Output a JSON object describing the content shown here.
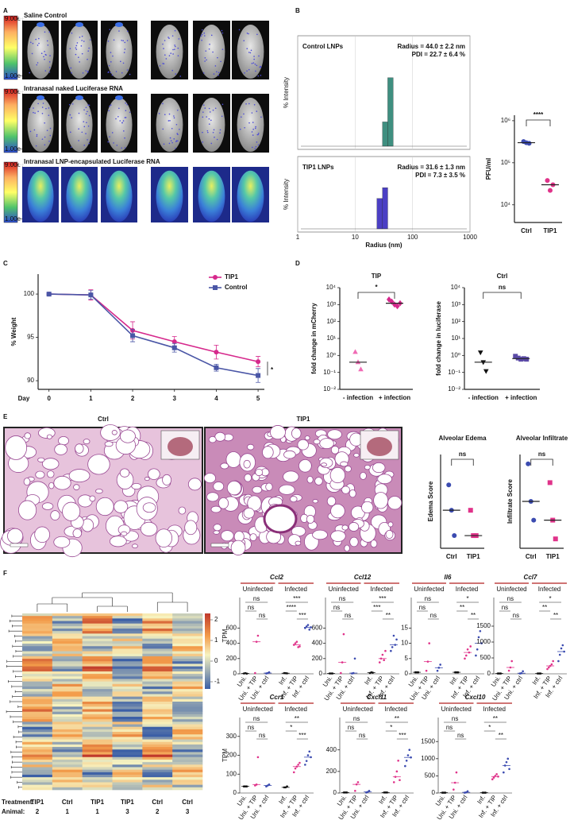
{
  "panel_letters": [
    "A",
    "B",
    "C",
    "D",
    "E",
    "F"
  ],
  "panel_a": {
    "rows": [
      "Saline Control",
      "Intranasal naked Luciferase RNA",
      "Intranasal LNP-encapsulated Luciferase RNA"
    ],
    "colorbar_labels": [
      "9.00e+",
      "1.00e+"
    ]
  },
  "panel_e": {
    "images": [
      "Ctrl",
      "TIP1"
    ]
  },
  "heatmap": {
    "colorbar_ticks": [
      2,
      1,
      0,
      -1
    ],
    "row_titles": [
      "Treatment:",
      "Animal:"
    ],
    "treatment": [
      "TIP1",
      "Ctrl",
      "TIP1",
      "TIP1",
      "Ctrl",
      "Ctrl"
    ],
    "animal": [
      "2",
      "1",
      "1",
      "3",
      "2",
      "3"
    ]
  },
  "panel_f": {
    "group_headers": [
      "Uninfected",
      "Infected"
    ],
    "x_labels": [
      "Uni.",
      "Uni. + TIP",
      "Uni. + ctrl",
      "Inf.",
      "Inf. + TIP",
      "Inf. + ctrl"
    ],
    "colors": [
      "#111111",
      "#e0338a",
      "#3b4bb0",
      "#111111",
      "#e0338a",
      "#3b4bb0"
    ],
    "ylabel": "TPM"
  },
  "chart_data": [
    {
      "type": "histogram",
      "title": "Control LNPs",
      "annotations": [
        "Radius = 44.0 ± 2.2 nm",
        "PDI = 22.7 ± 6.4 %"
      ],
      "ylabel": "% Intensity",
      "bins": [
        30,
        37,
        46
      ],
      "values": [
        22,
        62
      ],
      "color": "#3f8f80",
      "xlim": [
        1,
        1000
      ],
      "xticks": [
        1,
        10,
        100,
        1000
      ],
      "log_x": true,
      "ylim": [
        0,
        100
      ],
      "grid": true
    },
    {
      "type": "histogram",
      "title": "TIP1 LNPs",
      "annotations": [
        "Radius = 31.6 ± 1.3 nm",
        "PDI = 7.3 ± 3.5 %"
      ],
      "ylabel": "% Intensity",
      "xlabel": "Radius (nm)",
      "bins": [
        24,
        30,
        37
      ],
      "values": [
        42,
        57
      ],
      "color": "#4b3fc4",
      "xlim": [
        1,
        1000
      ],
      "xticks": [
        1,
        10,
        100,
        1000
      ],
      "log_x": true,
      "ylim": [
        0,
        100
      ],
      "grid": true
    },
    {
      "type": "scatter",
      "categories": [
        "Ctrl",
        "TIP1"
      ],
      "groups": [
        [
          320000,
          300000,
          290000
        ],
        [
          38000,
          22000,
          30000
        ]
      ],
      "medians": [
        300000,
        30000
      ],
      "colors": [
        "#3b4bb0",
        "#e0338a"
      ],
      "markers": [
        "circle",
        "circle"
      ],
      "ylabel": "PFU/ml",
      "ylim": [
        3800,
        1350000
      ],
      "log_y": true,
      "yticks": [
        {
          "value": 10000,
          "label": "10⁴"
        },
        {
          "value": 100000,
          "label": "10⁵"
        },
        {
          "value": 1000000,
          "label": "10⁶"
        }
      ],
      "significance": "****"
    },
    {
      "type": "line",
      "ylabel": "% Weight",
      "xlabel": "Day",
      "x": [
        0,
        1,
        2,
        3,
        4,
        5
      ],
      "xlim": [
        -0.26,
        5.15
      ],
      "ylim": [
        89,
        102.3
      ],
      "xticks": [
        0,
        1,
        2,
        3,
        4,
        5
      ],
      "yticks": [
        90,
        95,
        100
      ],
      "legend": "top-right",
      "annotation": "*",
      "series": [
        {
          "name": "TIP1",
          "color": "#d6288c",
          "marker": "circle",
          "values": [
            100,
            99.9,
            95.8,
            94.5,
            93.3,
            92.2
          ],
          "errors": [
            0.1,
            0.6,
            1.0,
            0.6,
            0.8,
            0.6
          ]
        },
        {
          "name": "Control",
          "color": "#4a56a6",
          "marker": "square",
          "values": [
            100,
            99.9,
            95.2,
            93.8,
            91.5,
            90.6
          ],
          "errors": [
            0.1,
            0.5,
            0.7,
            0.5,
            0.4,
            0.8
          ]
        }
      ]
    },
    {
      "type": "scatter",
      "title": "TIP",
      "ylabel": "fold change in mCherry",
      "categories": [
        "- infection",
        "+ infection"
      ],
      "groups": [
        [
          1.6,
          0.4,
          0.15
        ],
        [
          2000,
          1500,
          1000,
          800,
          1200
        ]
      ],
      "medians": [
        0.4,
        1200
      ],
      "colors": [
        "#f06bb5",
        "#d6288c"
      ],
      "markers": [
        "triangle",
        "diamond"
      ],
      "ylim": [
        0.01,
        10000
      ],
      "log_y": true,
      "yticks": [
        {
          "value": 0.01,
          "label": "10⁻²"
        },
        {
          "value": 0.1,
          "label": "10⁻¹"
        },
        {
          "value": 1,
          "label": "10⁰"
        },
        {
          "value": 10,
          "label": "10¹"
        },
        {
          "value": 100,
          "label": "10²"
        },
        {
          "value": 1000,
          "label": "10³"
        },
        {
          "value": 10000,
          "label": "10⁴"
        }
      ],
      "significance": "*"
    },
    {
      "type": "scatter",
      "title": "Ctrl",
      "ylabel": "fold change in luciferase",
      "categories": [
        "- infection",
        "+ infection"
      ],
      "groups": [
        [
          1.5,
          0.4,
          0.12
        ],
        [
          0.9,
          0.7,
          0.6,
          0.65,
          0.6
        ]
      ],
      "medians": [
        0.4,
        0.65
      ],
      "colors": [
        "#111111",
        "#5b4aa6"
      ],
      "markers": [
        "triangle-down",
        "square"
      ],
      "ylim": [
        0.01,
        10000
      ],
      "log_y": true,
      "yticks": [
        {
          "value": 0.01,
          "label": "10⁻²"
        },
        {
          "value": 0.1,
          "label": "10⁻¹"
        },
        {
          "value": 1,
          "label": "10⁰"
        },
        {
          "value": 10,
          "label": "10¹"
        },
        {
          "value": 100,
          "label": "10²"
        },
        {
          "value": 1000,
          "label": "10³"
        },
        {
          "value": 10000,
          "label": "10⁴"
        }
      ],
      "significance": "ns"
    },
    {
      "type": "scatter",
      "title": "Alveolar Edema",
      "ylabel": "Edema Score",
      "categories": [
        "Ctrl",
        "TIP1"
      ],
      "groups": [
        [
          2,
          1,
          0
        ],
        [
          1,
          0,
          0
        ]
      ],
      "medians": [
        1,
        0
      ],
      "colors": [
        "#3b4bb0",
        "#e0338a"
      ],
      "markers": [
        "circle",
        "square"
      ],
      "ylim": [
        -0.5,
        3.2
      ],
      "significance": "ns"
    },
    {
      "type": "scatter",
      "title": "Alveolar Infiltrate",
      "ylabel": "Infiltrate Score",
      "categories": [
        "Ctrl",
        "TIP1"
      ],
      "groups": [
        [
          4,
          2,
          1
        ],
        [
          3,
          1,
          0
        ]
      ],
      "medians": [
        2,
        1
      ],
      "colors": [
        "#3b4bb0",
        "#e0338a"
      ],
      "markers": [
        "circle",
        "square"
      ],
      "ylim": [
        -0.5,
        4.5
      ],
      "significance": "ns"
    },
    {
      "type": "strip",
      "title": "Ccl2",
      "ylim": [
        0,
        1000
      ],
      "yticks": [
        0,
        200,
        400,
        600
      ],
      "groups": [
        [
          5,
          8,
          3
        ],
        [
          10,
          420,
          500
        ],
        [
          5,
          10,
          20
        ],
        [
          10,
          8,
          6
        ],
        [
          380,
          400,
          420,
          350,
          360
        ],
        [
          600,
          620,
          640,
          580,
          610
        ]
      ],
      "medians": [
        5,
        420,
        10,
        8,
        380,
        610
      ],
      "significance": [
        [
          "ns",
          "ns",
          "ns"
        ],
        [
          "***",
          "****",
          "***"
        ]
      ]
    },
    {
      "type": "strip",
      "title": "Ccl12",
      "ylim": [
        0,
        1000
      ],
      "yticks": [
        0,
        200,
        400,
        600
      ],
      "groups": [
        [
          5,
          5,
          5
        ],
        [
          10,
          150,
          520
        ],
        [
          5,
          10,
          200
        ],
        [
          10,
          20,
          15
        ],
        [
          150,
          200,
          250,
          180,
          300
        ],
        [
          300,
          350,
          500,
          380,
          450
        ]
      ],
      "medians": [
        5,
        150,
        10,
        15,
        200,
        380
      ],
      "significance": [
        [
          "ns",
          "ns",
          "ns"
        ],
        [
          "***",
          "***",
          "**"
        ]
      ]
    },
    {
      "type": "strip",
      "title": "Il6",
      "ylim": [
        0,
        25
      ],
      "yticks": [
        0,
        5,
        10,
        15
      ],
      "groups": [
        [
          0.5,
          0.5,
          0.5
        ],
        [
          1,
          4,
          10
        ],
        [
          1,
          2,
          3
        ],
        [
          0.5,
          0.5,
          0.5
        ],
        [
          5,
          6,
          8,
          7,
          9
        ],
        [
          6,
          8,
          12,
          14,
          10
        ]
      ],
      "medians": [
        0.5,
        4,
        2,
        0.5,
        7,
        10
      ],
      "significance": [
        [
          "ns",
          "ns",
          "ns"
        ],
        [
          "*",
          "**",
          "**"
        ]
      ]
    },
    {
      "type": "strip",
      "title": "Ccl7",
      "ylim": [
        0,
        2400
      ],
      "yticks": [
        0,
        500,
        1000,
        1500
      ],
      "groups": [
        [
          10,
          10,
          10
        ],
        [
          100,
          200,
          400
        ],
        [
          10,
          20,
          80
        ],
        [
          10,
          10,
          10
        ],
        [
          150,
          200,
          250,
          300,
          400
        ],
        [
          400,
          600,
          800,
          900,
          700
        ]
      ],
      "medians": [
        10,
        200,
        20,
        10,
        250,
        700
      ],
      "significance": [
        [
          "ns",
          "ns",
          "ns"
        ],
        [
          "*",
          "**",
          "**"
        ]
      ]
    },
    {
      "type": "strip",
      "title": "Ccr1",
      "ylim": [
        0,
        400
      ],
      "yticks": [
        0,
        100,
        200,
        300
      ],
      "groups": [
        [
          35,
          35,
          35
        ],
        [
          40,
          45,
          190
        ],
        [
          35,
          40,
          45
        ],
        [
          30,
          30,
          35
        ],
        [
          110,
          130,
          140,
          150,
          160
        ],
        [
          150,
          170,
          200,
          220,
          190
        ]
      ],
      "medians": [
        35,
        45,
        40,
        30,
        140,
        190
      ],
      "significance": [
        [
          "ns",
          "ns",
          "ns"
        ],
        [
          "**",
          "*",
          "***"
        ]
      ]
    },
    {
      "type": "strip",
      "title": "Cxcl11",
      "ylim": [
        0,
        700
      ],
      "yticks": [
        0,
        200,
        400
      ],
      "groups": [
        [
          5,
          5,
          5
        ],
        [
          20,
          80,
          100
        ],
        [
          5,
          10,
          20
        ],
        [
          5,
          5,
          5
        ],
        [
          100,
          150,
          200,
          300,
          120
        ],
        [
          250,
          300,
          350,
          400,
          330
        ]
      ],
      "medians": [
        5,
        80,
        10,
        5,
        150,
        330
      ],
      "significance": [
        [
          "ns",
          "ns",
          "ns"
        ],
        [
          "**",
          "*",
          "***"
        ]
      ]
    },
    {
      "type": "strip",
      "title": "Cxcl10",
      "ylim": [
        0,
        2200
      ],
      "yticks": [
        0,
        500,
        1000,
        1500
      ],
      "groups": [
        [
          10,
          10,
          10
        ],
        [
          100,
          300,
          600
        ],
        [
          10,
          20,
          50
        ],
        [
          10,
          10,
          10
        ],
        [
          400,
          450,
          500,
          550,
          480
        ],
        [
          600,
          800,
          900,
          1000,
          700
        ]
      ],
      "medians": [
        10,
        300,
        20,
        10,
        480,
        800
      ],
      "significance": [
        [
          "ns",
          "ns",
          "ns"
        ],
        [
          "**",
          "*",
          "**"
        ]
      ]
    }
  ]
}
